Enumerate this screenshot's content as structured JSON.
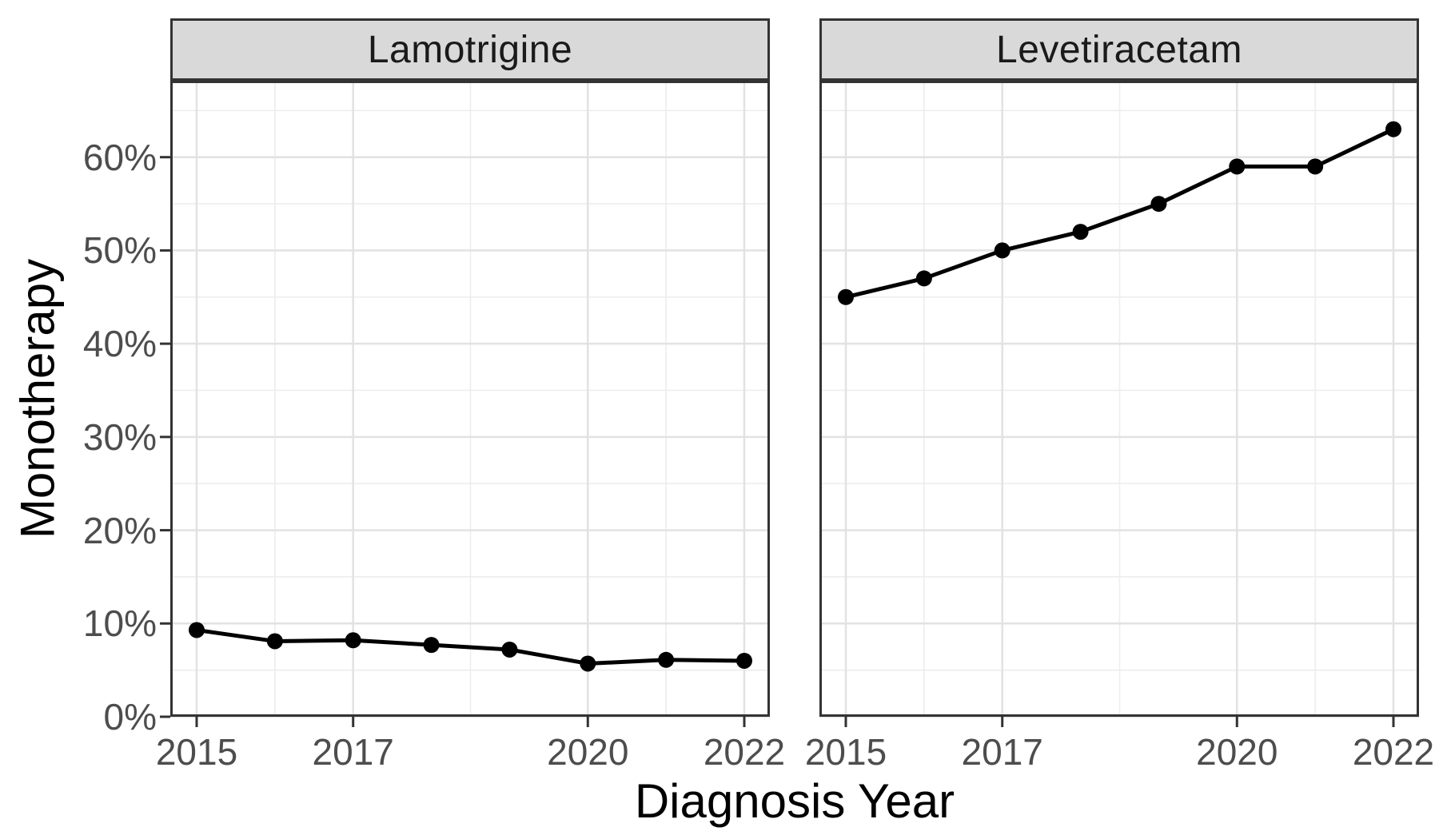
{
  "figure": {
    "axis": {
      "x_title": "Diagnosis Year",
      "y_title": "Monotherapy",
      "y_tick_labels": [
        "0%",
        "10%",
        "20%",
        "30%",
        "40%",
        "50%",
        "60%"
      ],
      "y_tick_values": [
        0,
        10,
        20,
        30,
        40,
        50,
        60
      ],
      "x_tick_labels": [
        "2015",
        "2017",
        "2020",
        "2022"
      ],
      "x_tick_values": [
        2015,
        2017,
        2020,
        2022
      ]
    },
    "colors": {
      "background": "#ffffff",
      "panel_background": "#ffffff",
      "panel_border": "#333333",
      "strip_fill": "#d9d9d9",
      "strip_text": "#1a1a1a",
      "grid_major": "#e2e2e2",
      "grid_minor": "#ededed",
      "series": "#000000",
      "tick_mark": "#333333",
      "tick_label": "#4d4d4d",
      "axis_title": "#000000"
    }
  },
  "chart_data": {
    "type": "line",
    "title": "",
    "xlabel": "Diagnosis Year",
    "ylabel": "Monotherapy",
    "x": [
      2015,
      2016,
      2017,
      2018,
      2019,
      2020,
      2021,
      2022
    ],
    "facets": [
      {
        "label": "Lamotrigine",
        "series_name": "Monotherapy %",
        "values": [
          9.3,
          8.1,
          8.2,
          7.7,
          7.2,
          5.7,
          6.1,
          6.0
        ]
      },
      {
        "label": "Levetiracetam",
        "series_name": "Monotherapy %",
        "values": [
          45,
          47,
          50,
          52,
          55,
          59,
          59,
          63
        ]
      }
    ],
    "xlim": [
      2014.66,
      2022.33
    ],
    "ylim": [
      0,
      68.2
    ],
    "y_major_gridlines": [
      0,
      10,
      20,
      30,
      40,
      50,
      60
    ],
    "y_minor_gridlines": [
      5,
      15,
      25,
      35,
      45,
      55,
      65
    ],
    "x_major_gridlines": [
      2015,
      2017,
      2020,
      2022
    ],
    "x_minor_gridlines": [
      2016,
      2018.5,
      2021
    ],
    "grid": true,
    "legend_position": "none",
    "marker": "point",
    "units": "percent"
  }
}
